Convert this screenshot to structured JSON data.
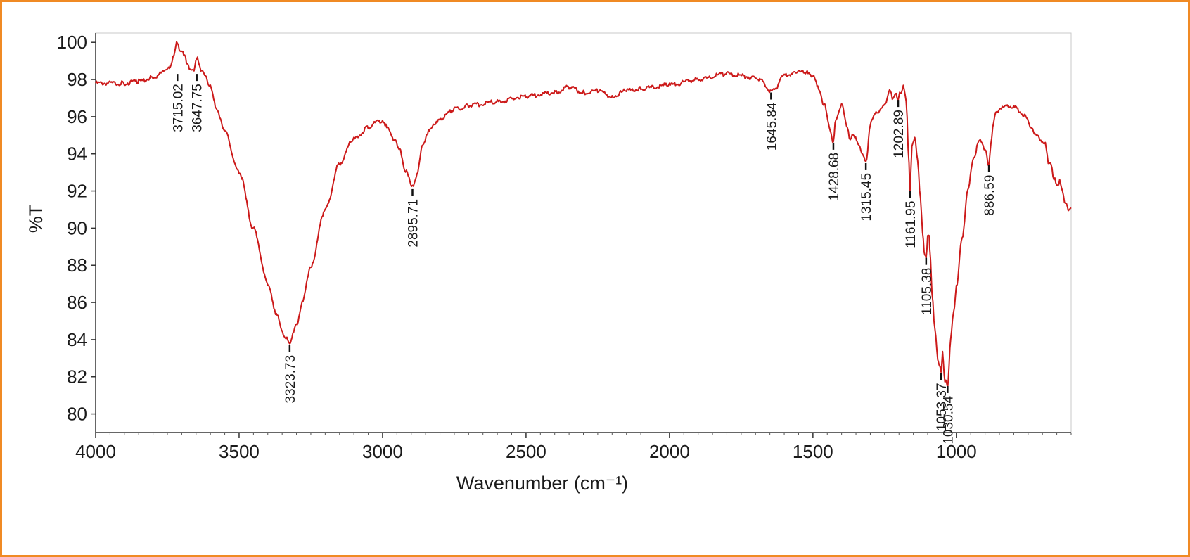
{
  "frame": {
    "border_color": "#f08a24"
  },
  "chart_data": {
    "type": "line",
    "xlabel": "Wavenumber (cm⁻¹)",
    "ylabel": "%T",
    "xlim": [
      4000,
      600
    ],
    "ylim": [
      79,
      100.5
    ],
    "x_ticks": [
      4000,
      3500,
      3000,
      2500,
      2000,
      1500,
      1000
    ],
    "y_ticks": [
      80,
      82,
      84,
      86,
      88,
      90,
      92,
      94,
      96,
      98,
      100
    ],
    "grid": false,
    "legend": "none",
    "line_color": "#cc1a1a",
    "series": [
      {
        "x": [
          4000,
          3900,
          3850,
          3800,
          3760,
          3740,
          3730,
          3715.02,
          3705,
          3690,
          3680,
          3670,
          3660,
          3647.75,
          3640,
          3630,
          3620,
          3600,
          3580,
          3550,
          3500,
          3450,
          3400,
          3370,
          3340,
          3323.73,
          3310,
          3300,
          3280,
          3250,
          3200,
          3150,
          3100,
          3050,
          3020,
          3000,
          2980,
          2960,
          2940,
          2920,
          2895.71,
          2880,
          2860,
          2840,
          2800,
          2750,
          2700,
          2600,
          2500,
          2400,
          2350,
          2300,
          2250,
          2200,
          2150,
          2100,
          2000,
          1900,
          1800,
          1700,
          1680,
          1660,
          1645.84,
          1630,
          1600,
          1560,
          1520,
          1500,
          1480,
          1460,
          1440,
          1428.68,
          1420,
          1400,
          1380,
          1370,
          1360,
          1340,
          1330,
          1315.45,
          1300,
          1280,
          1250,
          1230,
          1220,
          1210,
          1202.89,
          1195,
          1185,
          1175,
          1165,
          1161.95,
          1155,
          1145,
          1135,
          1125,
          1118,
          1110,
          1105.38,
          1100,
          1095,
          1090,
          1085,
          1075,
          1065,
          1060,
          1053.37,
          1048,
          1040,
          1030.54,
          1020,
          1010,
          1000,
          980,
          960,
          940,
          920,
          910,
          900,
          886.59,
          880,
          870,
          860,
          840,
          820,
          800,
          780,
          760,
          740,
          720,
          700,
          690,
          680,
          670,
          660,
          650,
          640,
          630,
          620,
          610,
          600
        ],
        "y": [
          97.8,
          97.8,
          97.9,
          98.1,
          98.4,
          98.7,
          99.2,
          100.0,
          99.5,
          99.4,
          98.8,
          98.6,
          98.4,
          99.2,
          98.9,
          98.4,
          98.3,
          97.6,
          96.5,
          95.2,
          93.0,
          90.0,
          87.0,
          85.3,
          84.2,
          83.7,
          84.5,
          84.8,
          86.0,
          88.0,
          91.0,
          93.5,
          94.8,
          95.4,
          95.7,
          95.8,
          95.3,
          94.8,
          94.2,
          93.1,
          92.2,
          92.9,
          94.5,
          95.2,
          95.9,
          96.4,
          96.6,
          96.8,
          97.1,
          97.3,
          97.6,
          97.3,
          97.4,
          97.1,
          97.4,
          97.5,
          97.7,
          98.0,
          98.3,
          98.1,
          97.9,
          97.6,
          97.3,
          97.6,
          98.2,
          98.4,
          98.4,
          98.2,
          97.5,
          96.6,
          95.3,
          94.6,
          95.9,
          96.6,
          95.5,
          94.7,
          95.1,
          94.4,
          94.1,
          93.5,
          95.6,
          96.2,
          96.6,
          97.4,
          96.9,
          97.3,
          96.9,
          97.3,
          97.6,
          96.9,
          93.4,
          92.0,
          94.4,
          94.9,
          93.6,
          91.6,
          89.8,
          88.5,
          88.4,
          89.5,
          89.6,
          88.2,
          86.6,
          84.5,
          83.0,
          82.6,
          82.3,
          83.3,
          81.8,
          81.5,
          84.0,
          85.5,
          86.8,
          89.5,
          92.0,
          93.8,
          94.7,
          94.6,
          94.2,
          93.4,
          94.5,
          95.8,
          96.3,
          96.5,
          96.6,
          96.5,
          96.3,
          96.0,
          95.5,
          94.9,
          94.7,
          94.5,
          93.6,
          93.4,
          92.7,
          92.3,
          92.5,
          92.0,
          91.3,
          91.0,
          91.1
        ]
      }
    ],
    "peaks": [
      {
        "x": 3715.02,
        "label": "3715.02",
        "end": 98.3
      },
      {
        "x": 3647.75,
        "label": "3647.75",
        "end": 98.3
      },
      {
        "x": 3323.73,
        "label": "3323.73",
        "end": 83.7
      },
      {
        "x": 2895.71,
        "label": "2895.71",
        "end": 92.1
      },
      {
        "x": 1645.84,
        "label": "1645.84",
        "end": 97.3
      },
      {
        "x": 1428.68,
        "label": "1428.68",
        "end": 94.6
      },
      {
        "x": 1315.45,
        "label": "1315.45",
        "end": 93.5
      },
      {
        "x": 1202.89,
        "label": "1202.89",
        "end": 96.9
      },
      {
        "x": 1161.95,
        "label": "1161.95",
        "end": 92.0
      },
      {
        "x": 1105.38,
        "label": "1105.38",
        "end": 88.4
      },
      {
        "x": 1053.37,
        "label": "1053.37",
        "end": 82.2
      },
      {
        "x": 1030.54,
        "label": "1030.54",
        "end": 81.5
      },
      {
        "x": 886.59,
        "label": "886.59",
        "end": 93.4
      }
    ]
  }
}
